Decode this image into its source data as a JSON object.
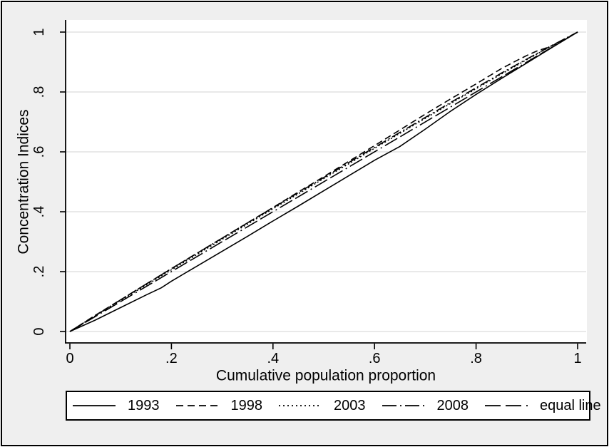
{
  "figure": {
    "background": "#efefef",
    "plot_background": "#ffffff",
    "grid_color": "#e2e2e2",
    "axis_color": "#000000",
    "line_color": "#000000",
    "text_color": "#000000",
    "frame_border_color": "#000000",
    "legend_background": "#ffffff"
  },
  "chart_data": {
    "type": "line",
    "title": "",
    "xlabel": "Cumulative population proportion",
    "ylabel": "Concentration Indices",
    "xlim": [
      0,
      1
    ],
    "ylim": [
      0,
      1
    ],
    "xtick_values": [
      0,
      0.2,
      0.4,
      0.6,
      0.8,
      1
    ],
    "xtick_labels": [
      "0",
      ".2",
      ".4",
      ".6",
      ".8",
      "1"
    ],
    "ytick_values": [
      0,
      0.2,
      0.4,
      0.6,
      0.8,
      1
    ],
    "ytick_labels": [
      "0",
      ".2",
      ".4",
      ".6",
      ".8",
      "1"
    ],
    "grid": "horizontal",
    "legend_position": "bottom",
    "series": [
      {
        "name": "1993",
        "style": "solid",
        "dash_pattern": "",
        "legend_dash": "",
        "points": [
          [
            0,
            0
          ],
          [
            0.05,
            0.038
          ],
          [
            0.1,
            0.08
          ],
          [
            0.15,
            0.122
          ],
          [
            0.18,
            0.146
          ],
          [
            0.2,
            0.168
          ],
          [
            0.25,
            0.218
          ],
          [
            0.3,
            0.268
          ],
          [
            0.35,
            0.318
          ],
          [
            0.4,
            0.369
          ],
          [
            0.45,
            0.419
          ],
          [
            0.5,
            0.47
          ],
          [
            0.55,
            0.521
          ],
          [
            0.6,
            0.572
          ],
          [
            0.65,
            0.618
          ],
          [
            0.7,
            0.676
          ],
          [
            0.75,
            0.736
          ],
          [
            0.8,
            0.792
          ],
          [
            0.85,
            0.845
          ],
          [
            0.9,
            0.897
          ],
          [
            0.95,
            0.949
          ],
          [
            1,
            1
          ]
        ]
      },
      {
        "name": "1998",
        "style": "dashed",
        "dash_pattern": "9 5",
        "legend_dash": "10 6",
        "points": [
          [
            0,
            0
          ],
          [
            0.05,
            0.054
          ],
          [
            0.1,
            0.106
          ],
          [
            0.15,
            0.158
          ],
          [
            0.2,
            0.21
          ],
          [
            0.25,
            0.261
          ],
          [
            0.3,
            0.312
          ],
          [
            0.35,
            0.363
          ],
          [
            0.4,
            0.414
          ],
          [
            0.45,
            0.466
          ],
          [
            0.5,
            0.517
          ],
          [
            0.55,
            0.569
          ],
          [
            0.6,
            0.621
          ],
          [
            0.65,
            0.673
          ],
          [
            0.7,
            0.726
          ],
          [
            0.75,
            0.777
          ],
          [
            0.8,
            0.827
          ],
          [
            0.85,
            0.878
          ],
          [
            0.88,
            0.905
          ],
          [
            0.9,
            0.922
          ],
          [
            0.92,
            0.937
          ],
          [
            0.94,
            0.948
          ],
          [
            0.96,
            0.962
          ],
          [
            0.98,
            0.981
          ],
          [
            1,
            1
          ]
        ]
      },
      {
        "name": "2003",
        "style": "dotted",
        "dash_pattern": "2 3",
        "legend_dash": "2 4",
        "points": [
          [
            0,
            0
          ],
          [
            0.05,
            0.052
          ],
          [
            0.1,
            0.104
          ],
          [
            0.15,
            0.155
          ],
          [
            0.2,
            0.206
          ],
          [
            0.25,
            0.257
          ],
          [
            0.3,
            0.308
          ],
          [
            0.35,
            0.359
          ],
          [
            0.4,
            0.41
          ],
          [
            0.45,
            0.46
          ],
          [
            0.5,
            0.511
          ],
          [
            0.55,
            0.561
          ],
          [
            0.6,
            0.612
          ],
          [
            0.65,
            0.662
          ],
          [
            0.7,
            0.712
          ],
          [
            0.75,
            0.762
          ],
          [
            0.8,
            0.811
          ],
          [
            0.85,
            0.86
          ],
          [
            0.9,
            0.908
          ],
          [
            0.95,
            0.955
          ],
          [
            1,
            1
          ]
        ]
      },
      {
        "name": "2008",
        "style": "dash-dot",
        "dash_pattern": "14 4 2 4",
        "legend_dash": "20 5 2 5",
        "points": [
          [
            0,
            0
          ],
          [
            0.05,
            0.053
          ],
          [
            0.1,
            0.106
          ],
          [
            0.15,
            0.158
          ],
          [
            0.2,
            0.21
          ],
          [
            0.25,
            0.261
          ],
          [
            0.3,
            0.312
          ],
          [
            0.35,
            0.363
          ],
          [
            0.4,
            0.413
          ],
          [
            0.45,
            0.464
          ],
          [
            0.5,
            0.514
          ],
          [
            0.55,
            0.565
          ],
          [
            0.6,
            0.615
          ],
          [
            0.65,
            0.665
          ],
          [
            0.7,
            0.715
          ],
          [
            0.75,
            0.765
          ],
          [
            0.8,
            0.814
          ],
          [
            0.85,
            0.863
          ],
          [
            0.9,
            0.91
          ],
          [
            0.95,
            0.956
          ],
          [
            1,
            1
          ]
        ]
      },
      {
        "name": "equal line",
        "style": "long-dash-dot",
        "dash_pattern": "20 5 20 5 2 5",
        "legend_dash": "22 7 22 7 2 7",
        "points": [
          [
            0,
            0
          ],
          [
            1,
            1
          ]
        ]
      }
    ]
  }
}
